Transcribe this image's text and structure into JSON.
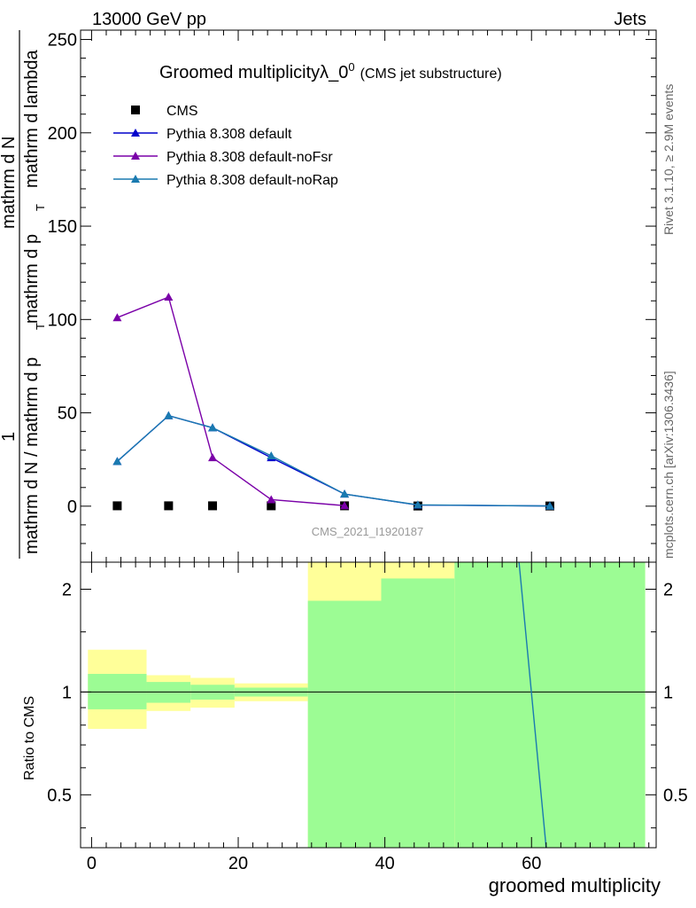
{
  "header": {
    "left": "13000 GeV pp",
    "right": "Jets"
  },
  "side": {
    "rivet": "Rivet 3.1.10, ≥ 2.9M events",
    "mcplots": "mcplots.cern.ch [arXiv:1306.3436]"
  },
  "chart_data": [
    {
      "type": "line",
      "title_main": "Groomed multiplicityλ_0",
      "title_sup": "0",
      "title_sub": "(CMS jet substructure)",
      "watermark": "CMS_2021_I1920187",
      "ylabel_num": "1",
      "ylabel_num2": "mathrm d",
      "ylabel_num3": "N",
      "ylabel_den": "mathrm d N / mathrm d p",
      "ylabel_den2": "T",
      "ylabel_den3": "mathrm d p",
      "ylabel_den4": "T",
      "ylabel_den5": "mathrm d lambda",
      "xlim": [
        -1.5,
        77
      ],
      "ylim": [
        -30,
        255
      ],
      "yticks": [
        0,
        50,
        100,
        150,
        200,
        250
      ],
      "legend_position": "top-left",
      "series": [
        {
          "name": "CMS",
          "marker": "square",
          "color": "#000000",
          "x": [
            3.5,
            10.5,
            16.5,
            24.5,
            34.5,
            44.5,
            62.5
          ],
          "y": [
            0.2,
            0.2,
            0.2,
            0.2,
            0.2,
            0.1,
            0.1
          ]
        },
        {
          "name": "Pythia 8.308 default",
          "marker": "triangle",
          "color": "#0000cc",
          "x": [
            3.5,
            10.5,
            16.5,
            24.5,
            34.5,
            44.5,
            62.5
          ],
          "y": [
            24,
            48.5,
            42,
            26,
            6.5,
            0.6,
            0.1
          ]
        },
        {
          "name": "Pythia 8.308 default-noFsr",
          "marker": "triangle",
          "color": "#7a00a8",
          "x": [
            3.5,
            10.5,
            16.5,
            24.5,
            34.5
          ],
          "y": [
            101,
            112,
            26,
            3.5,
            0.3
          ]
        },
        {
          "name": "Pythia 8.308 default-noRap",
          "marker": "triangle",
          "color": "#1a7ab0",
          "x": [
            3.5,
            10.5,
            16.5,
            24.5,
            34.5,
            44.5,
            62.5
          ],
          "y": [
            24,
            48.5,
            42,
            27,
            6.5,
            0.7,
            0.1
          ]
        }
      ]
    },
    {
      "type": "area",
      "ylabel": "Ratio to CMS",
      "xlabel": "groomed multiplicity",
      "yscale": "log",
      "ylim": [
        0.35,
        2.4
      ],
      "yticks": [
        0.5,
        1,
        2
      ],
      "xticks": [
        0,
        20,
        40,
        60
      ],
      "bands": [
        {
          "x0": -0.5,
          "x1": 7.5,
          "yellow": [
            0.78,
            1.33
          ],
          "green": [
            0.89,
            1.13
          ]
        },
        {
          "x0": 7.5,
          "x1": 13.5,
          "yellow": [
            0.88,
            1.12
          ],
          "green": [
            0.93,
            1.07
          ]
        },
        {
          "x0": 13.5,
          "x1": 19.5,
          "yellow": [
            0.9,
            1.1
          ],
          "green": [
            0.95,
            1.05
          ]
        },
        {
          "x0": 19.5,
          "x1": 29.5,
          "yellow": [
            0.94,
            1.06
          ],
          "green": [
            0.97,
            1.03
          ]
        },
        {
          "x0": 29.5,
          "x1": 39.5,
          "yellow": [
            0.3,
            3.0
          ],
          "green": [
            0.3,
            1.85
          ]
        },
        {
          "x0": 39.5,
          "x1": 49.5,
          "yellow": [
            0.3,
            3.0
          ],
          "green": [
            0.3,
            2.15
          ]
        },
        {
          "x0": 49.5,
          "x1": 75.5,
          "yellow": [
            0.3,
            3.0
          ],
          "green": [
            0.3,
            3.0
          ]
        }
      ],
      "ratio_line": {
        "color": "#1a7ab0",
        "x": [
          58.3,
          62.0
        ],
        "y": [
          2.4,
          0.35
        ]
      }
    }
  ]
}
